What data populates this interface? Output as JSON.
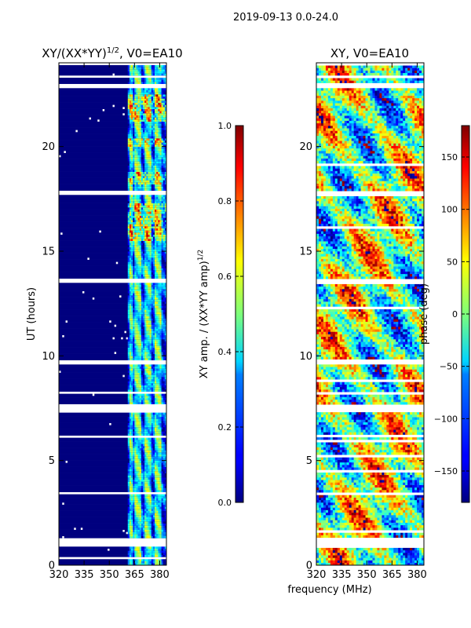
{
  "figure": {
    "suptitle": "2019-09-13 0.0-24.0",
    "xlabel_shared": "frequency (MHz)"
  },
  "chart_data": [
    {
      "type": "heatmap",
      "title": "XY/(XX*YY)^1/2, V0=EA10",
      "title_main": "XY/(XX*YY)",
      "title_sup": "1/2",
      "title_tail": ", V0=EA10",
      "xlabel": "frequency (MHz)",
      "ylabel": "UT (hours)",
      "xlim": [
        320,
        384
      ],
      "ylim": [
        0,
        24
      ],
      "xticks": [
        320,
        335,
        350,
        365,
        380
      ],
      "yticks": [
        0,
        5,
        10,
        15,
        20
      ],
      "colormap": "jet",
      "colorbar": {
        "label": "XY amp. / (XX*YY amp)^1/2",
        "label_main": "XY amp. / (XX*YY amp)",
        "label_sup": "1/2",
        "range": [
          0.0,
          1.0
        ],
        "ticks": [
          0.0,
          0.2,
          0.4,
          0.6,
          0.8,
          1.0
        ],
        "tick_labels": [
          "0.0",
          "0.2",
          "0.4",
          "0.6",
          "0.8",
          "1.0"
        ]
      },
      "bright_channels_mhz": [
        363,
        366,
        368,
        372,
        374,
        378,
        380
      ],
      "high_amplitude_ut_ranges": [
        [
          15.5,
          17.3
        ],
        [
          18.2,
          18.8
        ],
        [
          20.0,
          20.4
        ],
        [
          21.2,
          22.5
        ]
      ]
    },
    {
      "type": "heatmap",
      "title": "XY, V0=EA10",
      "xlabel": "frequency (MHz)",
      "ylabel": "",
      "xlim": [
        320,
        384
      ],
      "ylim": [
        0,
        24
      ],
      "xticks": [
        320,
        335,
        350,
        365,
        380
      ],
      "yticks": [
        0,
        5,
        10,
        15,
        20
      ],
      "colormap": "jet",
      "colorbar": {
        "label": "phase (deg)",
        "range": [
          -180,
          180
        ],
        "ticks": [
          -150,
          -100,
          -50,
          0,
          50,
          100,
          150
        ],
        "tick_labels": [
          "−150",
          "−100",
          "−50",
          "0",
          "50",
          "100",
          "150"
        ]
      }
    }
  ],
  "flagged_ut_bands_hours": [
    [
      0.9,
      1.3
    ],
    [
      7.3,
      7.7
    ],
    [
      9.6,
      9.8
    ],
    [
      13.5,
      13.7
    ],
    [
      17.7,
      17.9
    ],
    [
      22.8,
      23.0
    ],
    [
      23.3,
      23.45
    ],
    [
      23.9,
      24.0
    ],
    [
      0.35,
      0.42
    ],
    [
      1.6,
      1.65
    ],
    [
      2.0,
      2.05
    ],
    [
      2.6,
      2.65
    ],
    [
      3.4,
      3.46
    ],
    [
      4.5,
      4.55
    ],
    [
      5.2,
      5.25
    ],
    [
      5.9,
      5.95
    ],
    [
      6.1,
      6.2
    ],
    [
      6.6,
      6.65
    ],
    [
      8.2,
      8.26
    ],
    [
      8.8,
      8.85
    ],
    [
      10.2,
      10.25
    ],
    [
      11.4,
      11.45
    ],
    [
      12.3,
      12.35
    ],
    [
      13.2,
      13.25
    ],
    [
      14.0,
      14.05
    ],
    [
      14.5,
      14.55
    ],
    [
      15.2,
      15.25
    ],
    [
      16.1,
      16.15
    ],
    [
      18.0,
      18.05
    ],
    [
      19.1,
      19.15
    ],
    [
      20.6,
      20.65
    ],
    [
      21.6,
      21.65
    ],
    [
      22.4,
      22.45
    ]
  ]
}
